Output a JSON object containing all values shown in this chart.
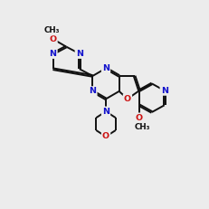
{
  "bg_color": "#ececec",
  "bond_color": "#111111",
  "N_color": "#1111cc",
  "O_color": "#cc1111",
  "lw": 1.4,
  "fs": 6.8
}
